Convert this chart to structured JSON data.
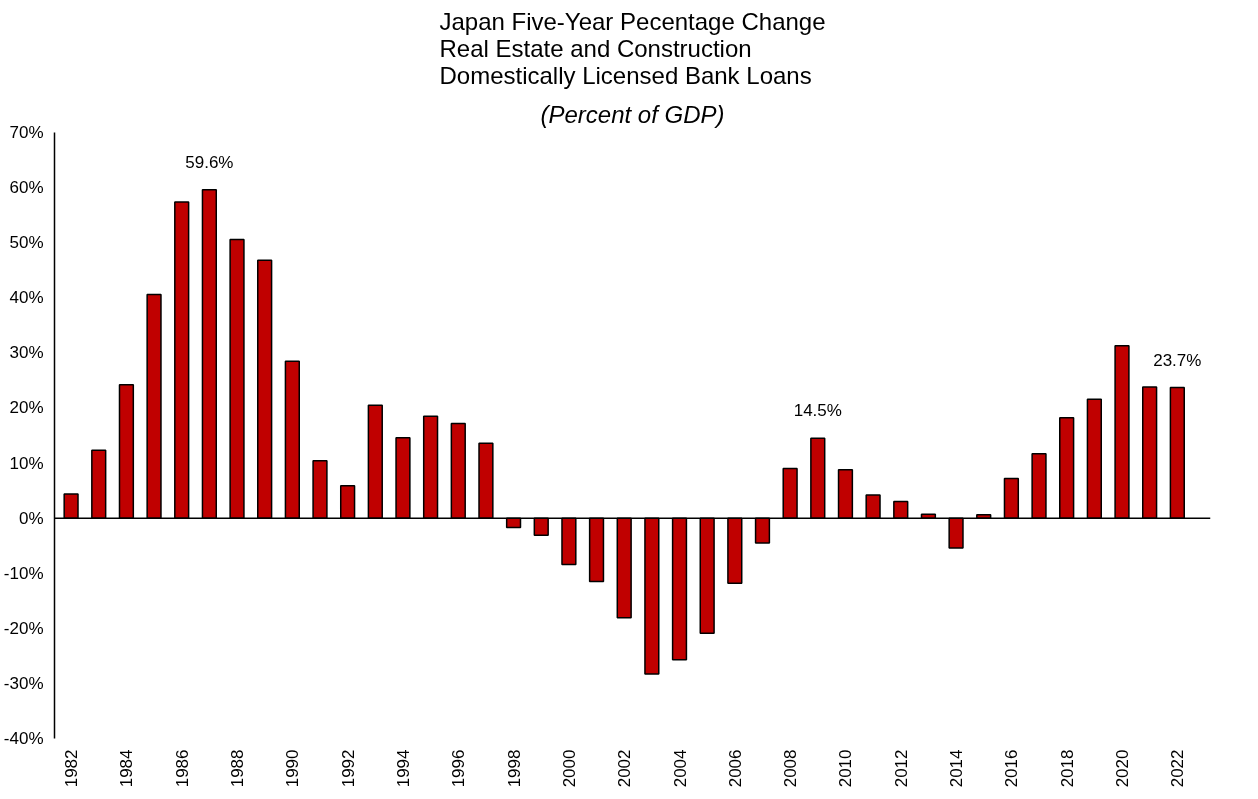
{
  "chart_data": {
    "type": "bar",
    "title": "Japan Five-Year Pecentage Change\nReal Estate and Construction\nDomestically Licensed Bank Loans",
    "subtitle": "(Percent of GDP)",
    "x": [
      1982,
      1983,
      1984,
      1985,
      1986,
      1987,
      1988,
      1989,
      1990,
      1991,
      1992,
      1993,
      1994,
      1995,
      1996,
      1997,
      1998,
      1999,
      2000,
      2001,
      2002,
      2003,
      2004,
      2005,
      2006,
      2007,
      2008,
      2009,
      2010,
      2011,
      2012,
      2013,
      2014,
      2015,
      2016,
      2017,
      2018,
      2019,
      2020,
      2021,
      2022
    ],
    "values": [
      4.4,
      12.3,
      24.2,
      40.6,
      57.4,
      59.6,
      50.6,
      46.8,
      28.5,
      10.4,
      5.9,
      20.5,
      14.6,
      18.5,
      17.2,
      13.6,
      -1.7,
      -3.1,
      -8.4,
      -11.5,
      -18.1,
      -28.3,
      -25.7,
      -20.9,
      -11.8,
      -4.5,
      9.0,
      14.5,
      8.8,
      4.2,
      3.0,
      0.7,
      -5.4,
      0.6,
      7.2,
      11.7,
      18.2,
      21.6,
      31.3,
      23.8,
      23.7
    ],
    "value_labels": [
      null,
      null,
      null,
      null,
      null,
      "59.6%",
      null,
      null,
      null,
      null,
      null,
      null,
      null,
      null,
      null,
      null,
      null,
      null,
      null,
      null,
      null,
      null,
      null,
      null,
      null,
      null,
      null,
      "14.5%",
      null,
      null,
      null,
      null,
      null,
      null,
      null,
      null,
      null,
      null,
      null,
      null,
      "23.7%"
    ],
    "color": "#c00000",
    "xlim": [
      1981.4,
      2023.2
    ],
    "xticks": [
      1982,
      1984,
      1986,
      1988,
      1990,
      1992,
      1994,
      1996,
      1998,
      2000,
      2002,
      2004,
      2006,
      2008,
      2010,
      2012,
      2014,
      2016,
      2018,
      2020,
      2022
    ],
    "ylim": [
      -40,
      70
    ],
    "yticks": [
      {
        "value": -40,
        "label": "-40%"
      },
      {
        "value": -30,
        "label": "-30%"
      },
      {
        "value": -20,
        "label": "-20%"
      },
      {
        "value": -10,
        "label": "-10%"
      },
      {
        "value": 0,
        "label": "0%"
      },
      {
        "value": 10,
        "label": "10%"
      },
      {
        "value": 20,
        "label": "20%"
      },
      {
        "value": 30,
        "label": "30%"
      },
      {
        "value": 40,
        "label": "40%"
      },
      {
        "value": 50,
        "label": "50%"
      },
      {
        "value": 60,
        "label": "60%"
      },
      {
        "value": 70,
        "label": "70%"
      }
    ]
  }
}
